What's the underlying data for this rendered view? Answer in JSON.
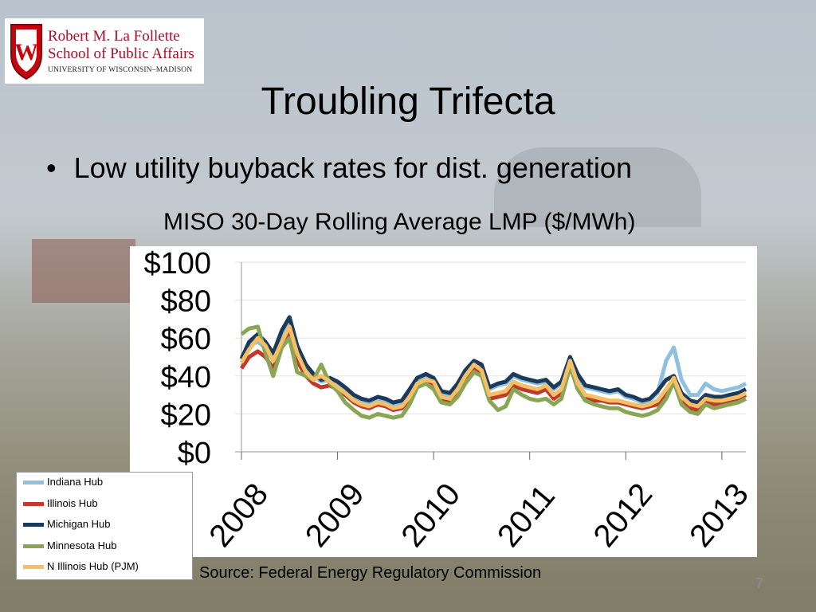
{
  "logo": {
    "line1": "Robert M. La Follette",
    "line2": "School of Public Affairs",
    "line3": "UNIVERSITY OF WISCONSIN–MADISON",
    "crest_letter": "W",
    "crest_color": "#c5050c"
  },
  "slide": {
    "title": "Troubling Trifecta",
    "bullet": "Low utility buyback rates for dist. generation",
    "bullet_glyph": "•",
    "source": "Source: Federal Energy Regulatory Commission",
    "page_number": "7"
  },
  "chart_data": {
    "type": "line",
    "title": "MISO 30-Day Rolling Average LMP ($/MWh)",
    "xlabel": "",
    "ylabel": "",
    "ylim": [
      0,
      100
    ],
    "xlim": [
      2008.0,
      2013.25
    ],
    "yticks": [
      "$0",
      "$20",
      "$40",
      "$60",
      "$80",
      "$100"
    ],
    "ytick_values": [
      0,
      20,
      40,
      60,
      80,
      100
    ],
    "xticks": [
      "2008",
      "2009",
      "2010",
      "2011",
      "2012",
      "2013"
    ],
    "xtick_values": [
      2008,
      2009,
      2010,
      2011,
      2012,
      2013
    ],
    "grid": true,
    "legend": "bottom-left",
    "x": [
      2008.0,
      2008.08,
      2008.17,
      2008.25,
      2008.33,
      2008.42,
      2008.5,
      2008.58,
      2008.67,
      2008.75,
      2008.83,
      2008.92,
      2009.0,
      2009.08,
      2009.17,
      2009.25,
      2009.33,
      2009.42,
      2009.5,
      2009.58,
      2009.67,
      2009.75,
      2009.83,
      2009.92,
      2010.0,
      2010.08,
      2010.17,
      2010.25,
      2010.33,
      2010.42,
      2010.5,
      2010.58,
      2010.67,
      2010.75,
      2010.83,
      2010.92,
      2011.0,
      2011.08,
      2011.17,
      2011.25,
      2011.33,
      2011.42,
      2011.5,
      2011.58,
      2011.67,
      2011.75,
      2011.83,
      2011.92,
      2012.0,
      2012.08,
      2012.17,
      2012.25,
      2012.33,
      2012.42,
      2012.5,
      2012.58,
      2012.67,
      2012.75,
      2012.83,
      2012.92,
      2013.0,
      2013.08,
      2013.17,
      2013.25
    ],
    "series": [
      {
        "name": "Indiana Hub",
        "color": "#8ec1e0",
        "values": [
          50,
          56,
          58,
          55,
          50,
          62,
          70,
          55,
          44,
          40,
          37,
          38,
          36,
          33,
          29,
          27,
          26,
          28,
          27,
          25,
          26,
          32,
          38,
          40,
          38,
          31,
          30,
          35,
          42,
          47,
          45,
          33,
          35,
          36,
          40,
          38,
          37,
          36,
          37,
          33,
          36,
          50,
          40,
          34,
          33,
          32,
          31,
          32,
          29,
          28,
          26,
          27,
          31,
          48,
          55,
          38,
          30,
          30,
          36,
          33,
          32,
          33,
          34,
          36
        ]
      },
      {
        "name": "Illinois Hub",
        "color": "#c0392b",
        "values": [
          44,
          50,
          53,
          50,
          44,
          55,
          63,
          48,
          40,
          36,
          34,
          35,
          33,
          30,
          26,
          24,
          23,
          25,
          24,
          22,
          23,
          28,
          35,
          37,
          36,
          27,
          26,
          31,
          38,
          44,
          41,
          28,
          29,
          30,
          35,
          33,
          32,
          31,
          33,
          28,
          31,
          46,
          34,
          28,
          27,
          27,
          26,
          26,
          25,
          24,
          23,
          24,
          25,
          30,
          38,
          28,
          23,
          22,
          26,
          25,
          26,
          27,
          28,
          30
        ]
      },
      {
        "name": "Michigan Hub",
        "color": "#1b3a5c",
        "values": [
          49,
          58,
          62,
          58,
          52,
          64,
          71,
          56,
          46,
          41,
          38,
          39,
          37,
          34,
          30,
          28,
          27,
          29,
          28,
          26,
          27,
          33,
          39,
          41,
          39,
          32,
          31,
          36,
          43,
          48,
          46,
          34,
          36,
          37,
          41,
          39,
          38,
          37,
          38,
          34,
          37,
          50,
          41,
          35,
          34,
          33,
          32,
          33,
          30,
          29,
          27,
          28,
          32,
          38,
          40,
          31,
          27,
          26,
          30,
          29,
          29,
          30,
          31,
          33
        ]
      },
      {
        "name": "Minnesota Hub",
        "color": "#8aa655",
        "values": [
          62,
          65,
          66,
          52,
          40,
          55,
          60,
          42,
          40,
          38,
          46,
          36,
          32,
          26,
          22,
          19,
          18,
          20,
          19,
          18,
          19,
          25,
          34,
          36,
          33,
          26,
          25,
          29,
          36,
          42,
          40,
          27,
          22,
          24,
          33,
          30,
          28,
          27,
          28,
          25,
          28,
          45,
          33,
          27,
          25,
          24,
          23,
          23,
          21,
          20,
          19,
          20,
          22,
          28,
          37,
          25,
          21,
          20,
          25,
          23,
          24,
          25,
          26,
          28
        ]
      },
      {
        "name": "N Illinois Hub (PJM)",
        "color": "#f5c065",
        "values": [
          47,
          54,
          60,
          56,
          48,
          58,
          66,
          52,
          42,
          38,
          40,
          37,
          34,
          31,
          27,
          25,
          24,
          26,
          25,
          23,
          24,
          29,
          36,
          38,
          37,
          29,
          28,
          33,
          40,
          46,
          43,
          30,
          31,
          32,
          37,
          35,
          34,
          33,
          35,
          30,
          33,
          48,
          36,
          30,
          29,
          28,
          27,
          27,
          26,
          25,
          24,
          25,
          27,
          33,
          39,
          29,
          25,
          24,
          28,
          27,
          27,
          28,
          29,
          31
        ]
      }
    ]
  }
}
